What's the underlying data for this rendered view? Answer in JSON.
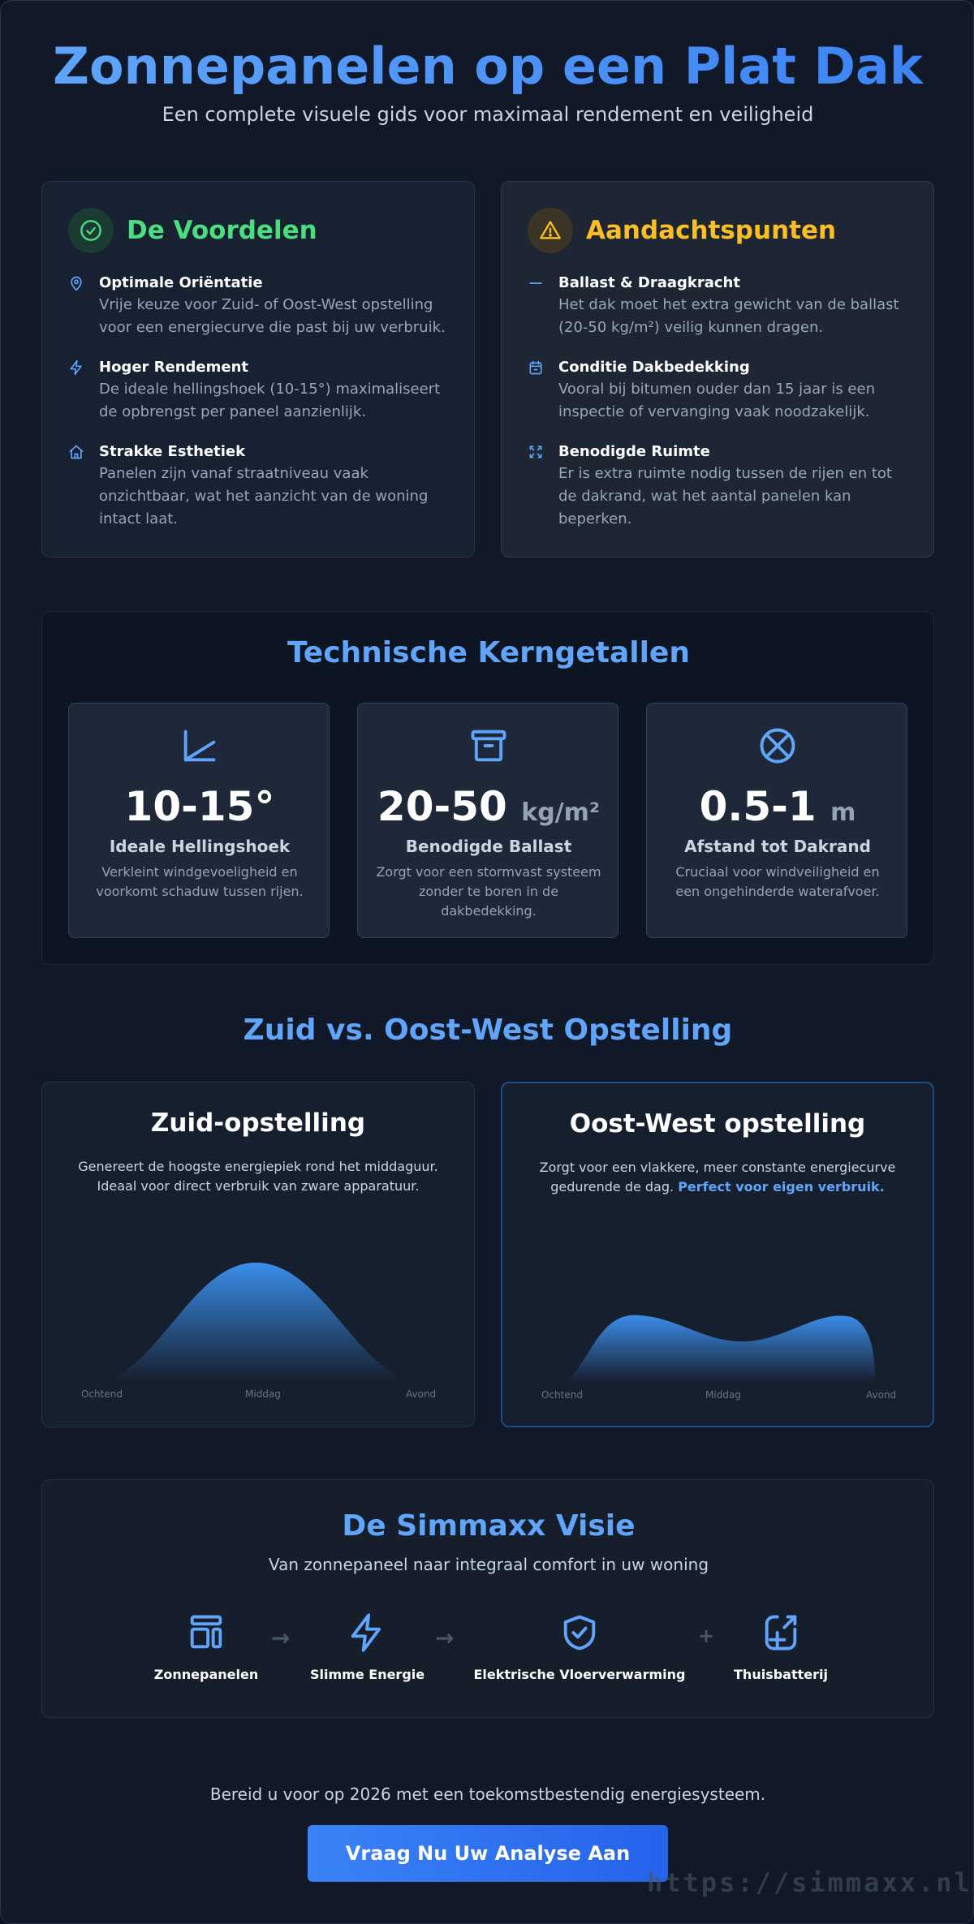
{
  "hero": {
    "title": "Zonnepanelen op een Plat Dak",
    "subtitle": "Een complete visuele gids voor maximaal rendement en veiligheid"
  },
  "voordelen": {
    "title": "De Voordelen",
    "icon": "check-circle-icon",
    "color": "#4ade80",
    "items": [
      {
        "icon": "location-pin-icon",
        "title": "Optimale Oriëntatie",
        "text": "Vrije keuze voor Zuid- of Oost-West opstelling voor een energiecurve die past bij uw verbruik."
      },
      {
        "icon": "lightning-icon",
        "title": "Hoger Rendement",
        "text": "De ideale hellingshoek (10-15°) maximaliseert de opbrengst per paneel aanzienlijk."
      },
      {
        "icon": "home-icon",
        "title": "Strakke Esthetiek",
        "text": "Panelen zijn vanaf straatniveau vaak onzichtbaar, wat het aanzicht van de woning intact laat."
      }
    ]
  },
  "aandachtspunten": {
    "title": "Aandachtspunten",
    "icon": "warning-triangle-icon",
    "color": "#fbbf24",
    "items": [
      {
        "icon": "dash-icon",
        "title": "Ballast & Draagkracht",
        "text": "Het dak moet het extra gewicht van de ballast (20-50 kg/m²) veilig kunnen dragen."
      },
      {
        "icon": "calendar-icon",
        "title": "Conditie Dakbedekking",
        "text": "Vooral bij bitumen ouder dan 15 jaar is een inspectie of vervanging vaak noodzakelijk."
      },
      {
        "icon": "expand-icon",
        "title": "Benodigde Ruimte",
        "text": "Er is extra ruimte nodig tussen de rijen en tot de dakrand, wat het aantal panelen kan beperken."
      }
    ]
  },
  "tech": {
    "title": "Technische Kerngetallen",
    "stats": [
      {
        "icon": "angle-icon",
        "value": "10-15°",
        "unit": "",
        "label": "Ideale Hellingshoek",
        "text": "Verkleint windgevoeligheid en voorkomt schaduw tussen rijen."
      },
      {
        "icon": "archive-box-icon",
        "value": "20-50",
        "unit": "kg/m²",
        "label": "Benodigde Ballast",
        "text": "Zorgt voor een stormvast systeem zonder te boren in de dakbedekking."
      },
      {
        "icon": "cross-circle-icon",
        "value": "0.5-1",
        "unit": "m",
        "label": "Afstand tot Dakrand",
        "text": "Cruciaal voor windveiligheid en een ongehinderde waterafvoer."
      }
    ]
  },
  "compare": {
    "title": "Zuid vs. Oost-West Opstelling",
    "south": {
      "title": "Zuid-opstelling",
      "text": "Genereert de hoogste energiepiek rond het middaguur. Ideaal voor direct verbruik van zware apparatuur."
    },
    "eastwest": {
      "title": "Oost-West opstelling",
      "text": "Zorgt voor een vlakkere, meer constante energiecurve gedurende de dag.",
      "highlight": "Perfect voor eigen verbruik."
    },
    "axis": [
      "Ochtend",
      "Middag",
      "Avond"
    ]
  },
  "vision": {
    "title": "De Simmaxx Visie",
    "subtitle": "Van zonnepaneel naar integraal comfort in uw woning",
    "steps": [
      {
        "icon": "solar-panel-icon",
        "label": "Zonnepanelen"
      },
      {
        "icon": "lightning-icon",
        "label": "Slimme Energie"
      },
      {
        "icon": "shield-check-icon",
        "label": "Elektrische Vloerverwarming"
      },
      {
        "icon": "battery-plus-icon",
        "label": "Thuisbatterij"
      }
    ],
    "separators": [
      "→",
      "→",
      "+"
    ]
  },
  "cta": {
    "text": "Bereid u voor op 2026 met een toekomstbestendig energiesysteem.",
    "button": "Vraag Nu Uw Analyse Aan"
  },
  "watermark": "https://simmaxx.nl",
  "colors": {
    "accent": "#60a5fa",
    "button": "#3b82f6",
    "background": "#111827"
  }
}
